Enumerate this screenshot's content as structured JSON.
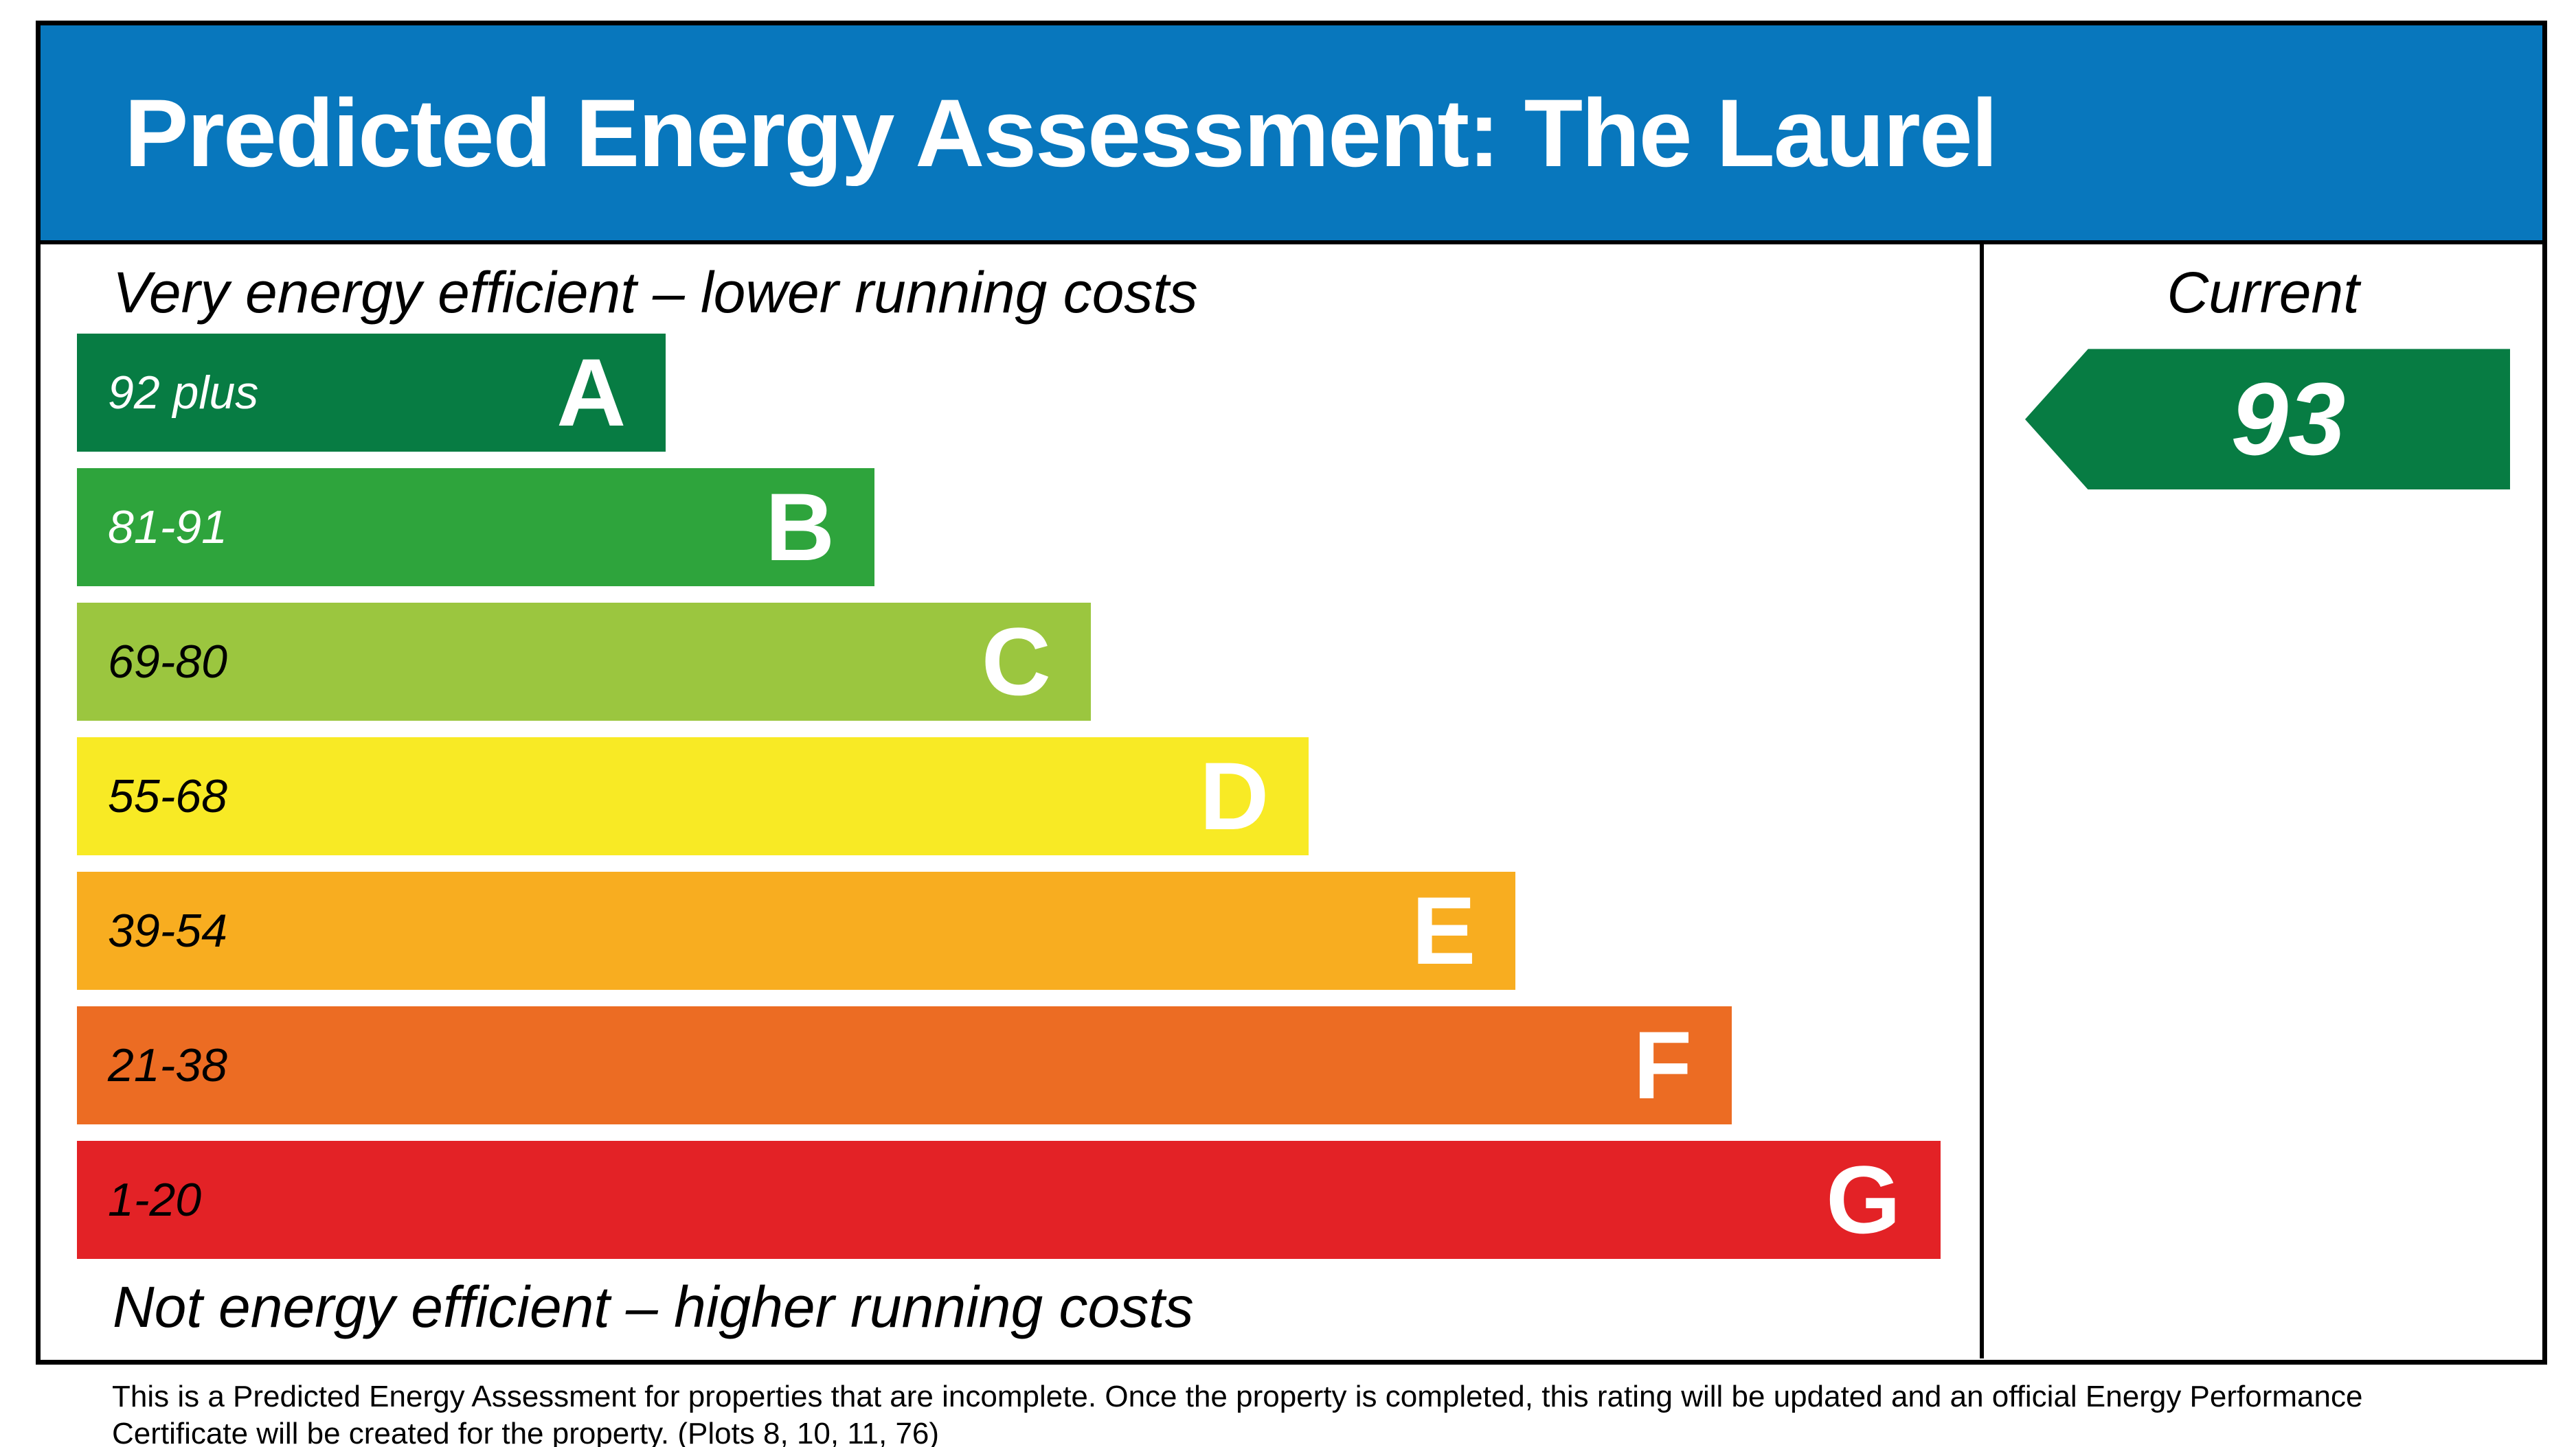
{
  "header": {
    "title": "Predicted Energy Assessment: The Laurel",
    "background_color": "#0877BD",
    "text_color": "#FFFFFF"
  },
  "chart_data": {
    "type": "bar",
    "title": "Predicted Energy Assessment: The Laurel",
    "top_label": "Very energy efficient – lower running costs",
    "bottom_label": "Not energy efficient – higher running costs",
    "current_column_label": "Current",
    "current_rating": "93",
    "current_band": "A",
    "arrow_color": "#077C43",
    "legend_position": "right",
    "bands": [
      {
        "letter": "A",
        "range": "92 plus",
        "color": "#077C43",
        "width_pct": 31.6,
        "range_text_color": "#FFFFFF"
      },
      {
        "letter": "B",
        "range": "81-91",
        "color": "#2EA43C",
        "width_pct": 42.8,
        "range_text_color": "#FFFFFF"
      },
      {
        "letter": "C",
        "range": "69-80",
        "color": "#9BC63F",
        "width_pct": 54.4,
        "range_text_color": "#000000"
      },
      {
        "letter": "D",
        "range": "55-68",
        "color": "#F8EA25",
        "width_pct": 66.1,
        "range_text_color": "#000000"
      },
      {
        "letter": "E",
        "range": "39-54",
        "color": "#F8AD20",
        "width_pct": 77.2,
        "range_text_color": "#000000"
      },
      {
        "letter": "F",
        "range": "21-38",
        "color": "#EC6C23",
        "width_pct": 88.8,
        "range_text_color": "#000000"
      },
      {
        "letter": "G",
        "range": "1-20",
        "color": "#E32226",
        "width_pct": 100,
        "range_text_color": "#000000"
      }
    ]
  },
  "footer": {
    "note": "This is a Predicted Energy Assessment for properties that are incomplete. Once the property is completed, this rating will be updated and an official Energy Performance Certificate will be created for the property. (Plots 8, 10, 11, 76)"
  }
}
